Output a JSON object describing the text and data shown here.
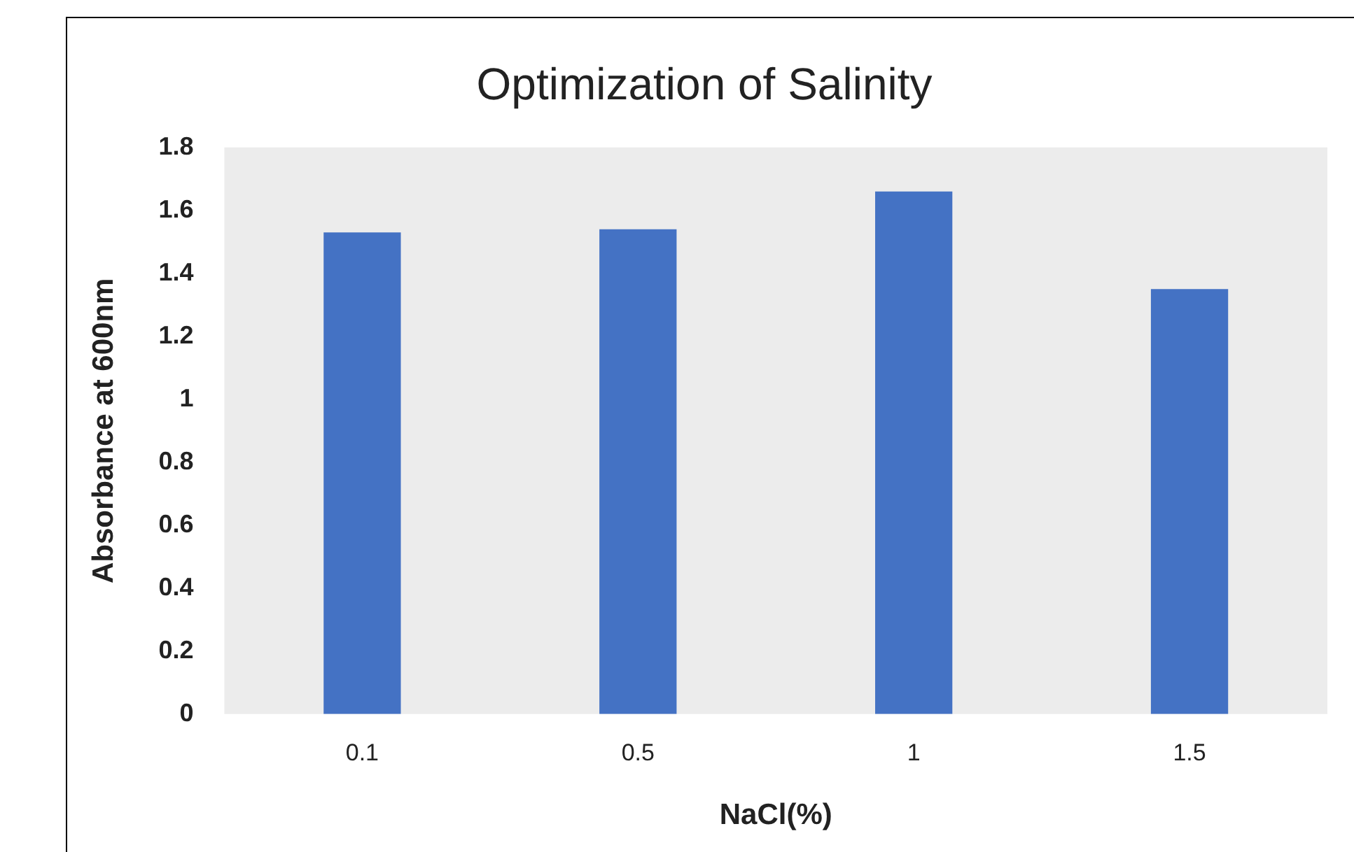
{
  "chart_data": {
    "type": "bar",
    "title": "Optimization of Salinity",
    "xlabel": "NaCl(%)",
    "ylabel": "Absorbance at 600nm",
    "categories": [
      "0.1",
      "0.5",
      "1",
      "1.5"
    ],
    "series": [
      {
        "color": "#4472c4",
        "values": [
          1.53,
          1.54,
          1.66,
          1.35
        ]
      }
    ],
    "ylim": [
      0,
      1.8
    ],
    "yticks": [
      0,
      0.2,
      0.4,
      0.6,
      0.8,
      1,
      1.2,
      1.4,
      1.6,
      1.8
    ],
    "grid": false,
    "legend": false
  }
}
